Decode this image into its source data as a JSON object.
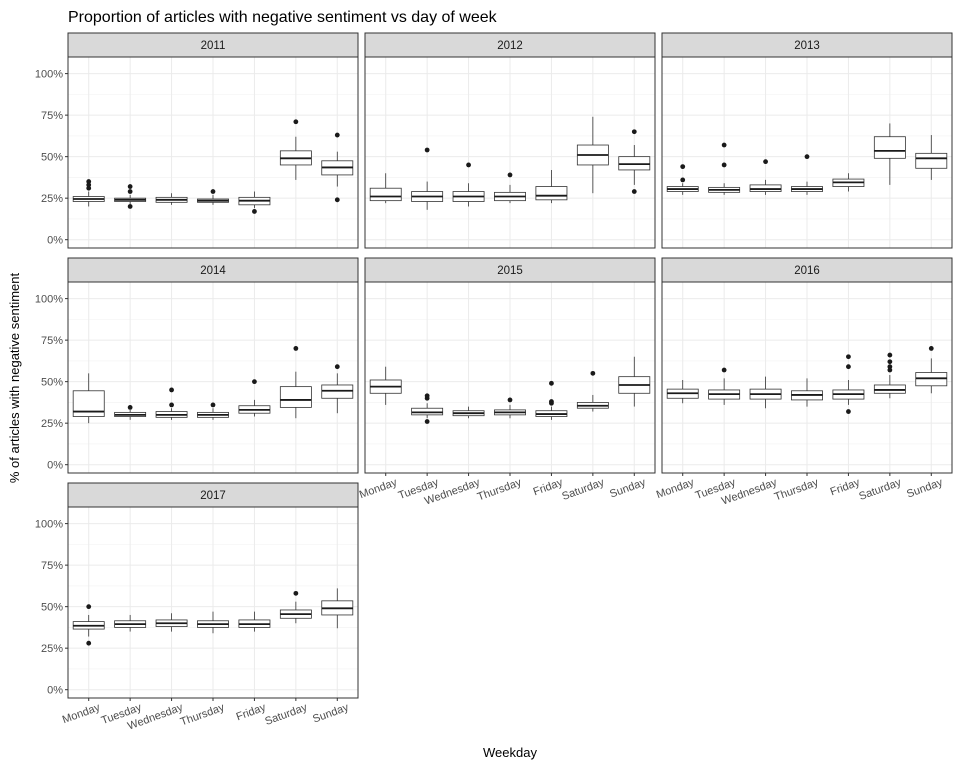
{
  "chart_data": {
    "type": "boxplot",
    "title": "Proportion of articles with negative sentiment vs day of week",
    "xlabel": "Weekday",
    "ylabel": "% of articles with negative sentiment",
    "ylim": [
      0,
      1.1
    ],
    "y_ticks": [
      0,
      0.25,
      0.5,
      0.75,
      1.0
    ],
    "y_tick_labels": [
      "0%",
      "25%",
      "50%",
      "75%",
      "100%"
    ],
    "categories": [
      "Monday",
      "Tuesday",
      "Wednesday",
      "Thursday",
      "Friday",
      "Saturday",
      "Sunday"
    ],
    "grid": true,
    "facets": [
      {
        "label": "2011",
        "boxes": [
          {
            "lo": 0.2,
            "q1": 0.23,
            "med": 0.245,
            "q3": 0.26,
            "hi": 0.29,
            "out": [
              0.31,
              0.33,
              0.35
            ]
          },
          {
            "lo": 0.21,
            "q1": 0.23,
            "med": 0.24,
            "q3": 0.25,
            "hi": 0.27,
            "out": [
              0.2,
              0.29,
              0.32
            ]
          },
          {
            "lo": 0.21,
            "q1": 0.225,
            "med": 0.24,
            "q3": 0.255,
            "hi": 0.28,
            "out": []
          },
          {
            "lo": 0.21,
            "q1": 0.225,
            "med": 0.235,
            "q3": 0.245,
            "hi": 0.27,
            "out": [
              0.29
            ]
          },
          {
            "lo": 0.19,
            "q1": 0.21,
            "med": 0.235,
            "q3": 0.255,
            "hi": 0.29,
            "out": [
              0.17
            ]
          },
          {
            "lo": 0.36,
            "q1": 0.45,
            "med": 0.49,
            "q3": 0.535,
            "hi": 0.62,
            "out": [
              0.71
            ]
          },
          {
            "lo": 0.32,
            "q1": 0.39,
            "med": 0.435,
            "q3": 0.475,
            "hi": 0.53,
            "out": [
              0.24,
              0.63
            ]
          }
        ]
      },
      {
        "label": "2012",
        "boxes": [
          {
            "lo": 0.22,
            "q1": 0.235,
            "med": 0.26,
            "q3": 0.31,
            "hi": 0.4,
            "out": []
          },
          {
            "lo": 0.18,
            "q1": 0.23,
            "med": 0.26,
            "q3": 0.29,
            "hi": 0.35,
            "out": [
              0.54
            ]
          },
          {
            "lo": 0.2,
            "q1": 0.23,
            "med": 0.26,
            "q3": 0.29,
            "hi": 0.34,
            "out": [
              0.45
            ]
          },
          {
            "lo": 0.22,
            "q1": 0.235,
            "med": 0.26,
            "q3": 0.285,
            "hi": 0.33,
            "out": [
              0.39
            ]
          },
          {
            "lo": 0.22,
            "q1": 0.24,
            "med": 0.265,
            "q3": 0.32,
            "hi": 0.42,
            "out": []
          },
          {
            "lo": 0.28,
            "q1": 0.45,
            "med": 0.51,
            "q3": 0.57,
            "hi": 0.74,
            "out": []
          },
          {
            "lo": 0.33,
            "q1": 0.42,
            "med": 0.455,
            "q3": 0.5,
            "hi": 0.57,
            "out": [
              0.29,
              0.65
            ]
          }
        ]
      },
      {
        "label": "2013",
        "boxes": [
          {
            "lo": 0.27,
            "q1": 0.29,
            "med": 0.305,
            "q3": 0.32,
            "hi": 0.34,
            "out": [
              0.36,
              0.44
            ]
          },
          {
            "lo": 0.27,
            "q1": 0.285,
            "med": 0.3,
            "q3": 0.315,
            "hi": 0.34,
            "out": [
              0.45,
              0.57
            ]
          },
          {
            "lo": 0.27,
            "q1": 0.29,
            "med": 0.305,
            "q3": 0.33,
            "hi": 0.36,
            "out": [
              0.47
            ]
          },
          {
            "lo": 0.27,
            "q1": 0.29,
            "med": 0.305,
            "q3": 0.32,
            "hi": 0.35,
            "out": [
              0.5
            ]
          },
          {
            "lo": 0.29,
            "q1": 0.32,
            "med": 0.345,
            "q3": 0.365,
            "hi": 0.4,
            "out": []
          },
          {
            "lo": 0.33,
            "q1": 0.49,
            "med": 0.535,
            "q3": 0.62,
            "hi": 0.7,
            "out": []
          },
          {
            "lo": 0.36,
            "q1": 0.43,
            "med": 0.49,
            "q3": 0.52,
            "hi": 0.63,
            "out": []
          }
        ]
      },
      {
        "label": "2014",
        "boxes": [
          {
            "lo": 0.25,
            "q1": 0.29,
            "med": 0.32,
            "q3": 0.445,
            "hi": 0.55,
            "out": []
          },
          {
            "lo": 0.27,
            "q1": 0.29,
            "med": 0.3,
            "q3": 0.315,
            "hi": 0.33,
            "out": [
              0.345
            ]
          },
          {
            "lo": 0.27,
            "q1": 0.285,
            "med": 0.3,
            "q3": 0.32,
            "hi": 0.34,
            "out": [
              0.36,
              0.45
            ]
          },
          {
            "lo": 0.27,
            "q1": 0.285,
            "med": 0.3,
            "q3": 0.315,
            "hi": 0.34,
            "out": [
              0.36
            ]
          },
          {
            "lo": 0.29,
            "q1": 0.31,
            "med": 0.33,
            "q3": 0.355,
            "hi": 0.39,
            "out": [
              0.5
            ]
          },
          {
            "lo": 0.28,
            "q1": 0.345,
            "med": 0.39,
            "q3": 0.47,
            "hi": 0.56,
            "out": [
              0.7
            ]
          },
          {
            "lo": 0.31,
            "q1": 0.4,
            "med": 0.445,
            "q3": 0.48,
            "hi": 0.55,
            "out": [
              0.59
            ]
          }
        ]
      },
      {
        "label": "2015",
        "boxes": [
          {
            "lo": 0.36,
            "q1": 0.43,
            "med": 0.47,
            "q3": 0.51,
            "hi": 0.59,
            "out": []
          },
          {
            "lo": 0.28,
            "q1": 0.3,
            "med": 0.315,
            "q3": 0.34,
            "hi": 0.37,
            "out": [
              0.26,
              0.4,
              0.415
            ]
          },
          {
            "lo": 0.28,
            "q1": 0.295,
            "med": 0.31,
            "q3": 0.325,
            "hi": 0.35,
            "out": []
          },
          {
            "lo": 0.28,
            "q1": 0.3,
            "med": 0.315,
            "q3": 0.33,
            "hi": 0.36,
            "out": [
              0.39
            ]
          },
          {
            "lo": 0.27,
            "q1": 0.29,
            "med": 0.305,
            "q3": 0.325,
            "hi": 0.35,
            "out": [
              0.37,
              0.38,
              0.49
            ]
          },
          {
            "lo": 0.32,
            "q1": 0.34,
            "med": 0.355,
            "q3": 0.375,
            "hi": 0.42,
            "out": [
              0.55
            ]
          },
          {
            "lo": 0.35,
            "q1": 0.43,
            "med": 0.48,
            "q3": 0.53,
            "hi": 0.65,
            "out": []
          }
        ]
      },
      {
        "label": "2016",
        "boxes": [
          {
            "lo": 0.37,
            "q1": 0.4,
            "med": 0.43,
            "q3": 0.455,
            "hi": 0.51,
            "out": []
          },
          {
            "lo": 0.36,
            "q1": 0.395,
            "med": 0.425,
            "q3": 0.45,
            "hi": 0.52,
            "out": [
              0.57
            ]
          },
          {
            "lo": 0.34,
            "q1": 0.395,
            "med": 0.425,
            "q3": 0.455,
            "hi": 0.53,
            "out": []
          },
          {
            "lo": 0.35,
            "q1": 0.39,
            "med": 0.42,
            "q3": 0.445,
            "hi": 0.52,
            "out": []
          },
          {
            "lo": 0.36,
            "q1": 0.395,
            "med": 0.425,
            "q3": 0.45,
            "hi": 0.51,
            "out": [
              0.32,
              0.59,
              0.65
            ]
          },
          {
            "lo": 0.4,
            "q1": 0.43,
            "med": 0.45,
            "q3": 0.48,
            "hi": 0.54,
            "out": [
              0.57,
              0.59,
              0.62,
              0.66
            ]
          },
          {
            "lo": 0.43,
            "q1": 0.475,
            "med": 0.52,
            "q3": 0.555,
            "hi": 0.64,
            "out": [
              0.7
            ]
          }
        ]
      },
      {
        "label": "2017",
        "boxes": [
          {
            "lo": 0.32,
            "q1": 0.365,
            "med": 0.385,
            "q3": 0.41,
            "hi": 0.45,
            "out": [
              0.28,
              0.5
            ]
          },
          {
            "lo": 0.35,
            "q1": 0.375,
            "med": 0.395,
            "q3": 0.415,
            "hi": 0.45,
            "out": []
          },
          {
            "lo": 0.35,
            "q1": 0.38,
            "med": 0.4,
            "q3": 0.42,
            "hi": 0.46,
            "out": []
          },
          {
            "lo": 0.34,
            "q1": 0.375,
            "med": 0.395,
            "q3": 0.415,
            "hi": 0.47,
            "out": []
          },
          {
            "lo": 0.35,
            "q1": 0.375,
            "med": 0.395,
            "q3": 0.42,
            "hi": 0.47,
            "out": []
          },
          {
            "lo": 0.4,
            "q1": 0.43,
            "med": 0.455,
            "q3": 0.48,
            "hi": 0.53,
            "out": [
              0.58
            ]
          },
          {
            "lo": 0.37,
            "q1": 0.45,
            "med": 0.49,
            "q3": 0.535,
            "hi": 0.61,
            "out": []
          }
        ]
      }
    ]
  }
}
